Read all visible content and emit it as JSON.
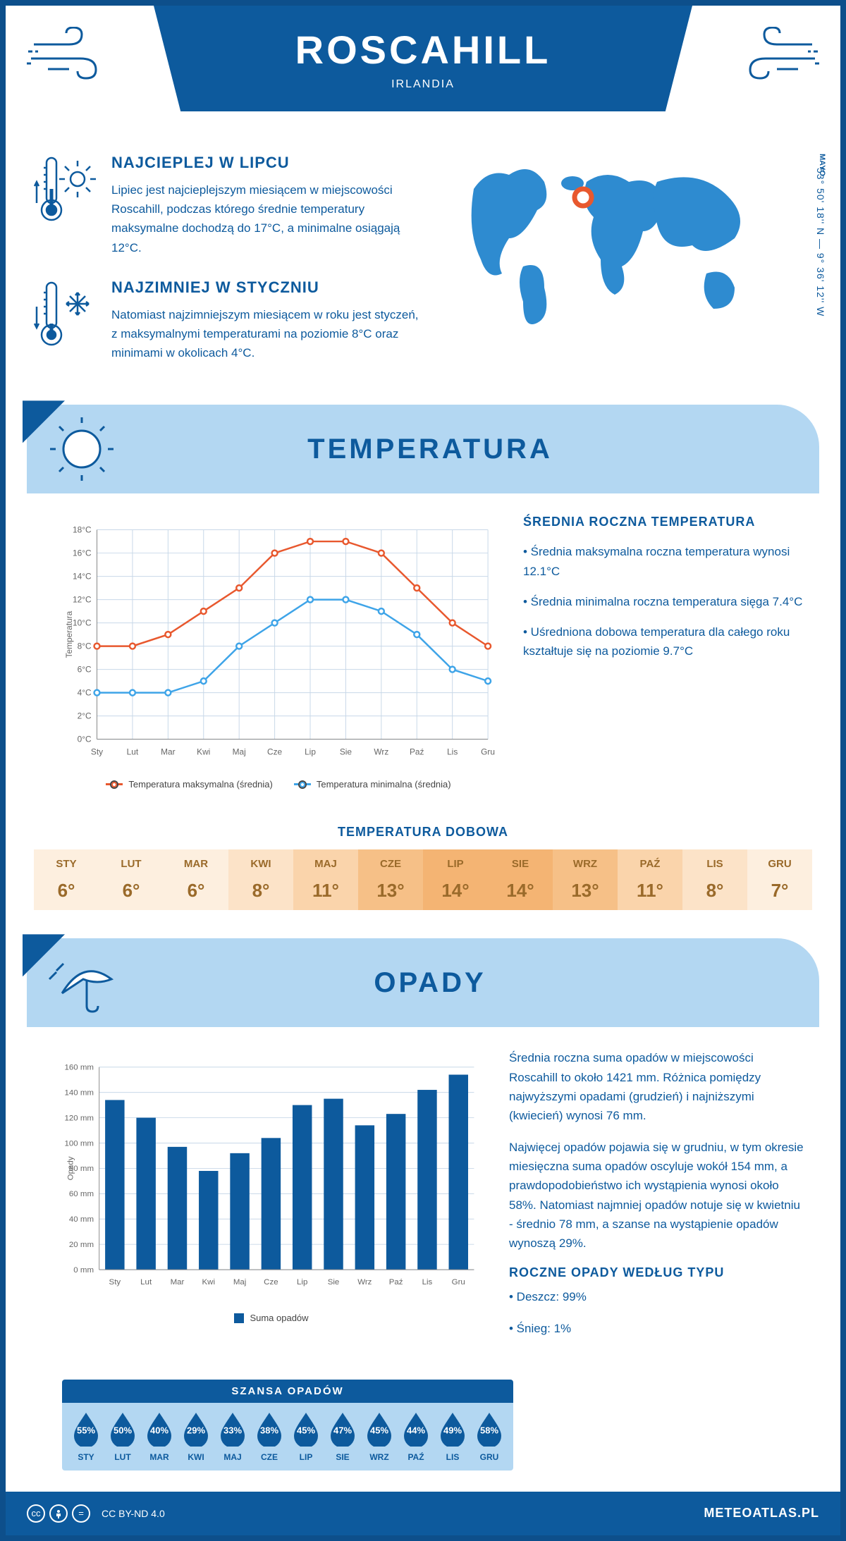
{
  "header": {
    "city": "ROSCAHILL",
    "country": "IRLANDIA"
  },
  "coords": "53° 50' 18'' N — 9° 36' 12'' W",
  "region": "MAYO",
  "warm": {
    "title": "NAJCIEPLEJ W LIPCU",
    "body": "Lipiec jest najcieplejszym miesiącem w miejscowości Roscahill, podczas którego średnie temperatury maksymalne dochodzą do 17°C, a minimalne osiągają 12°C."
  },
  "cold": {
    "title": "NAJZIMNIEJ W STYCZNIU",
    "body": "Natomiast najzimniejszym miesiącem w roku jest styczeń, z maksymalnymi temperaturami na poziomie 8°C oraz minimami w okolicach 4°C."
  },
  "section_temp_title": "TEMPERATURA",
  "section_opady_title": "OPADY",
  "temp_chart": {
    "type": "line",
    "months": [
      "Sty",
      "Lut",
      "Mar",
      "Kwi",
      "Maj",
      "Cze",
      "Lip",
      "Sie",
      "Wrz",
      "Paź",
      "Lis",
      "Gru"
    ],
    "max_values": [
      8,
      8,
      9,
      11,
      13,
      16,
      17,
      17,
      16,
      13,
      10,
      8
    ],
    "min_values": [
      4,
      4,
      4,
      5,
      8,
      10,
      12,
      12,
      11,
      9,
      6,
      5
    ],
    "max_color": "#e8582e",
    "min_color": "#3ea4e8",
    "ylim": [
      0,
      18
    ],
    "ytick_step": 2,
    "yaxis_label": "Temperatura",
    "grid_color": "#c8d8e8",
    "legend_max": "Temperatura maksymalna (średnia)",
    "legend_min": "Temperatura minimalna (średnia)"
  },
  "temp_stats": {
    "title": "ŚREDNIA ROCZNA TEMPERATURA",
    "b1": "• Średnia maksymalna roczna temperatura wynosi 12.1°C",
    "b2": "• Średnia minimalna roczna temperatura sięga 7.4°C",
    "b3": "• Uśredniona dobowa temperatura dla całego roku kształtuje się na poziomie 9.7°C"
  },
  "dobowa": {
    "title": "TEMPERATURA DOBOWA",
    "months": [
      "STY",
      "LUT",
      "MAR",
      "KWI",
      "MAJ",
      "CZE",
      "LIP",
      "SIE",
      "WRZ",
      "PAŹ",
      "LIS",
      "GRU"
    ],
    "values": [
      "6°",
      "6°",
      "6°",
      "8°",
      "11°",
      "13°",
      "14°",
      "14°",
      "13°",
      "11°",
      "8°",
      "7°"
    ],
    "colors": [
      "#fdefdf",
      "#fdefdf",
      "#fdefdf",
      "#fce3c8",
      "#fad4ab",
      "#f6c087",
      "#f4b473",
      "#f4b473",
      "#f6c087",
      "#fad4ab",
      "#fce3c8",
      "#fdefdf"
    ]
  },
  "opady_chart": {
    "type": "bar",
    "months": [
      "Sty",
      "Lut",
      "Mar",
      "Kwi",
      "Maj",
      "Cze",
      "Lip",
      "Sie",
      "Wrz",
      "Paź",
      "Lis",
      "Gru"
    ],
    "values": [
      134,
      120,
      97,
      78,
      92,
      104,
      130,
      135,
      114,
      123,
      142,
      154
    ],
    "bar_color": "#0d5a9d",
    "ylim": [
      0,
      160
    ],
    "ytick_step": 20,
    "yaxis_label": "Opady",
    "grid_color": "#c8d8e8",
    "legend": "Suma opadów"
  },
  "opady_text": {
    "p1": "Średnia roczna suma opadów w miejscowości Roscahill to około 1421 mm. Różnica pomiędzy najwyższymi opadami (grudzień) i najniższymi (kwiecień) wynosi 76 mm.",
    "p2": "Najwięcej opadów pojawia się w grudniu, w tym okresie miesięczna suma opadów oscyluje wokół 154 mm, a prawdopodobieństwo ich wystąpienia wynosi około 58%. Natomiast najmniej opadów notuje się w kwietniu - średnio 78 mm, a szanse na wystąpienie opadów wynoszą 29%.",
    "type_title": "ROCZNE OPADY WEDŁUG TYPU",
    "t1": "• Deszcz: 99%",
    "t2": "• Śnieg: 1%"
  },
  "szansa": {
    "title": "SZANSA OPADÓW",
    "months": [
      "STY",
      "LUT",
      "MAR",
      "KWI",
      "MAJ",
      "CZE",
      "LIP",
      "SIE",
      "WRZ",
      "PAŹ",
      "LIS",
      "GRU"
    ],
    "values": [
      "55%",
      "50%",
      "40%",
      "29%",
      "33%",
      "38%",
      "45%",
      "47%",
      "45%",
      "44%",
      "49%",
      "58%"
    ],
    "drop_color": "#0d5a9d"
  },
  "footer": {
    "license": "CC BY-ND 4.0",
    "site": "METEOATLAS.PL"
  }
}
